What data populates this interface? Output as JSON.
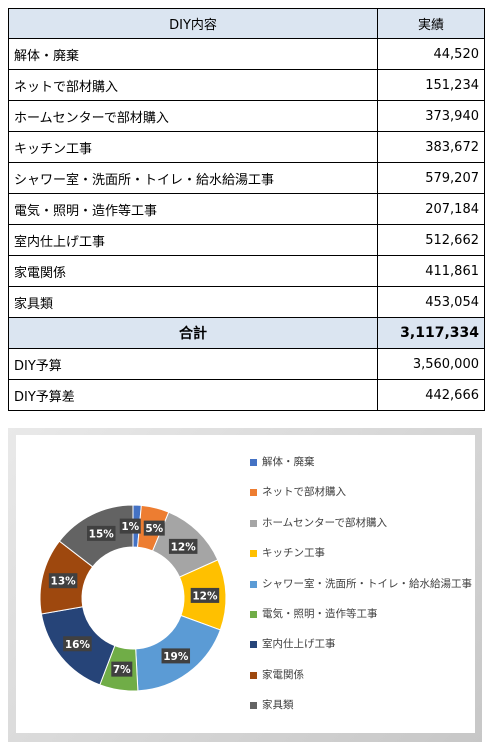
{
  "table": {
    "header": {
      "item": "DIY内容",
      "value": "実績"
    },
    "rows": [
      {
        "label": "解体・廃棄",
        "value": "44,520"
      },
      {
        "label": "ネットで部材購入",
        "value": "151,234"
      },
      {
        "label": "ホームセンターで部材購入",
        "value": "373,940"
      },
      {
        "label": "キッチン工事",
        "value": "383,672"
      },
      {
        "label": "シャワー室・洗面所・トイレ・給水給湯工事",
        "value": "579,207"
      },
      {
        "label": "電気・照明・造作等工事",
        "value": "207,184"
      },
      {
        "label": "室内仕上げ工事",
        "value": "512,662"
      },
      {
        "label": "家電関係",
        "value": "411,861"
      },
      {
        "label": "家具類",
        "value": "453,054"
      }
    ],
    "total": {
      "label": "合計",
      "value": "3,117,334"
    },
    "budget": {
      "label": "DIY予算",
      "value": "3,560,000"
    },
    "difference": {
      "label": "DIY予算差",
      "value": "442,666"
    }
  },
  "chart_data": {
    "type": "pie",
    "style": "donut",
    "legend_position": "right",
    "categories": [
      "解体・廃棄",
      "ネットで部材購入",
      "ホームセンターで部材購入",
      "キッチン工事",
      "シャワー室・洗面所・トイレ・給水給湯工事",
      "電気・照明・造作等工事",
      "室内仕上げ工事",
      "家電関係",
      "家具類"
    ],
    "values": [
      44520,
      151234,
      373940,
      383672,
      579207,
      207184,
      512662,
      411861,
      453054
    ],
    "data_labels": [
      "1%",
      "5%",
      "12%",
      "12%",
      "19%",
      "7%",
      "16%",
      "13%",
      "15%"
    ],
    "colors": [
      "#4472c4",
      "#ed7d31",
      "#a5a5a5",
      "#ffc000",
      "#5b9bd5",
      "#70ad47",
      "#264478",
      "#9e480e",
      "#636363"
    ],
    "label_box_color": "#404040"
  }
}
